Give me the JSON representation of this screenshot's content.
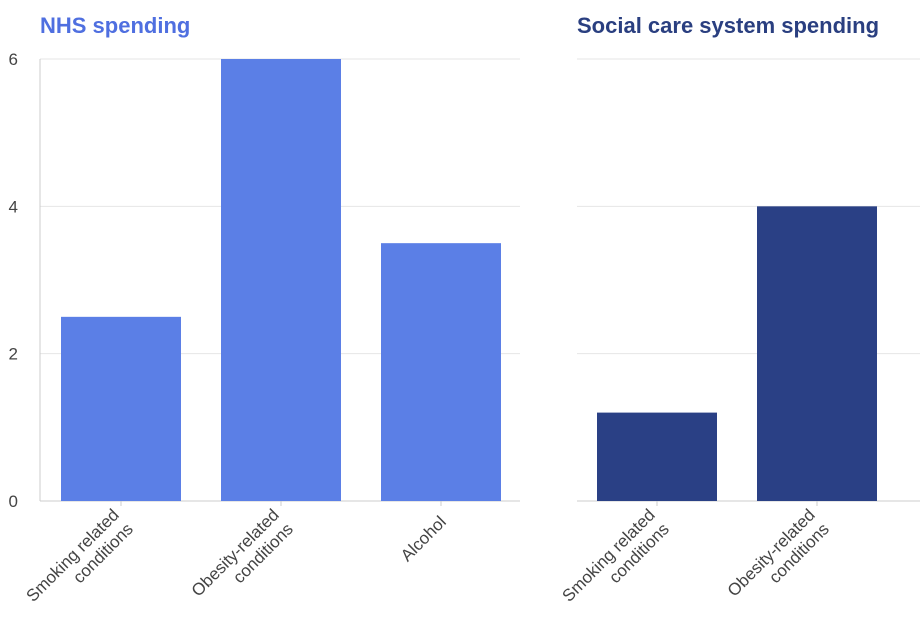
{
  "chart_data": [
    {
      "type": "bar",
      "title": "NHS spending",
      "title_color": "#4f6fe0",
      "bar_color": "#5b7fe6",
      "categories": [
        [
          "Smoking related",
          "conditions"
        ],
        [
          "Obesity-related",
          "conditions"
        ],
        [
          "Alcohol"
        ]
      ],
      "values": [
        2.5,
        6,
        3.5
      ],
      "ylim": [
        0,
        6
      ],
      "yticks": [
        0,
        2,
        4,
        6
      ],
      "grid": true
    },
    {
      "type": "bar",
      "title": "Social care system spending",
      "title_color": "#2a3f80",
      "bar_color": "#2a4085",
      "categories": [
        [
          "Smoking related",
          "conditions"
        ],
        [
          "Obesity-related",
          "conditions"
        ]
      ],
      "values": [
        1.2,
        4
      ],
      "ylim": [
        0,
        6
      ],
      "yticks": [
        0,
        2,
        4,
        6
      ],
      "grid": true
    }
  ]
}
